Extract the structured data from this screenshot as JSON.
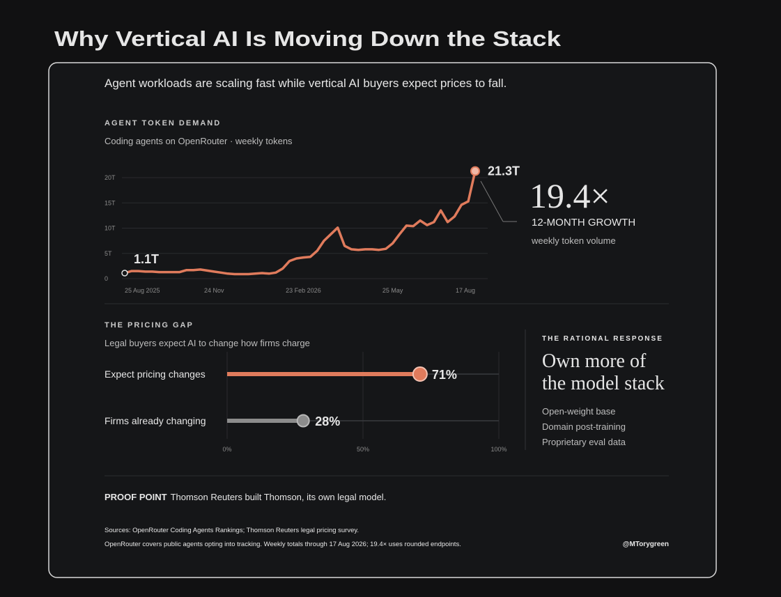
{
  "title": "Why Vertical AI Is Moving Down the Stack",
  "subtitle": "Agent workloads are scaling fast while vertical AI buyers expect prices to fall.",
  "chart_data": [
    {
      "type": "line",
      "title": "AGENT TOKEN DEMAND",
      "subtitle": "Coding agents on OpenRouter · weekly tokens",
      "categories": [
        "25 Aug 2025",
        null,
        null,
        null,
        null,
        null,
        null,
        null,
        null,
        null,
        null,
        null,
        null,
        "24 Nov",
        null,
        null,
        null,
        null,
        null,
        null,
        null,
        null,
        null,
        null,
        null,
        null,
        "23 Feb 2026",
        null,
        null,
        null,
        null,
        null,
        null,
        null,
        null,
        null,
        null,
        null,
        null,
        "25 May",
        null,
        null,
        null,
        null,
        null,
        null,
        null,
        null,
        null,
        null,
        null,
        "17 Aug"
      ],
      "values": [
        1.1,
        1.5,
        1.5,
        1.4,
        1.4,
        1.3,
        1.3,
        1.3,
        1.3,
        1.7,
        1.7,
        1.8,
        1.6,
        1.4,
        1.2,
        1.0,
        0.9,
        0.9,
        0.9,
        1.0,
        1.1,
        1.0,
        1.2,
        2.0,
        3.5,
        4.0,
        4.2,
        4.3,
        5.5,
        7.5,
        8.8,
        10.1,
        6.5,
        5.8,
        5.7,
        5.8,
        5.8,
        5.7,
        5.9,
        7.0,
        8.8,
        10.5,
        10.4,
        11.5,
        10.6,
        11.2,
        13.5,
        11.2,
        12.3,
        14.6,
        15.3,
        21.3
      ],
      "value_labels": [
        "1.1T",
        null,
        null,
        null,
        null,
        null,
        null,
        null,
        null,
        null,
        null,
        null,
        null,
        null,
        null,
        null,
        null,
        null,
        null,
        null,
        null,
        null,
        null,
        null,
        null,
        null,
        null,
        null,
        null,
        null,
        null,
        null,
        null,
        null,
        null,
        null,
        null,
        null,
        null,
        null,
        null,
        null,
        null,
        null,
        null,
        null,
        null,
        null,
        null,
        null,
        null,
        "21.3T"
      ],
      "color": "#e07b5c",
      "ylim": [
        0,
        22
      ],
      "yticks": [
        0,
        {
          "value": 5,
          "label": "5T"
        },
        {
          "value": 10,
          "label": "10T"
        },
        {
          "value": 15,
          "label": "15T"
        },
        {
          "value": 20,
          "label": "20T"
        }
      ],
      "grid": true
    },
    {
      "type": "bar",
      "orientation": "horizontal",
      "title": "THE PRICING GAP",
      "subtitle": "Legal buyers expect AI to change how firms charge",
      "categories": [
        "Expect pricing changes",
        "Firms already changing"
      ],
      "values": [
        71,
        28
      ],
      "value_labels": [
        "71%",
        "28%"
      ],
      "colors": [
        "#e07b5c",
        "#8c8c8c"
      ],
      "xlim": [
        0,
        100
      ],
      "xticks": [
        {
          "value": 0,
          "label": "0%"
        },
        {
          "value": 50,
          "label": "50%"
        },
        {
          "value": 100,
          "label": "100%"
        }
      ],
      "grid": true
    }
  ],
  "callout": {
    "value": "19.4×",
    "label": "12-MONTH GROWTH",
    "note": "weekly token volume"
  },
  "response": {
    "label": "THE RATIONAL RESPONSE",
    "heading_lines": [
      "Own more of",
      "the model stack"
    ],
    "items": [
      "Open-weight base",
      "Domain post-training",
      "Proprietary eval data"
    ]
  },
  "proof_point": {
    "label": "PROOF POINT",
    "text": "Thomson Reuters built Thomson, its own legal model."
  },
  "footer": {
    "sources": "Sources: OpenRouter Coding Agents Rankings; Thomson Reuters legal pricing survey.",
    "note": "OpenRouter covers public agents opting into tracking. Weekly totals through 17 Aug 2026; 19.4× uses rounded endpoints.",
    "handle": "@MTorygreen"
  }
}
